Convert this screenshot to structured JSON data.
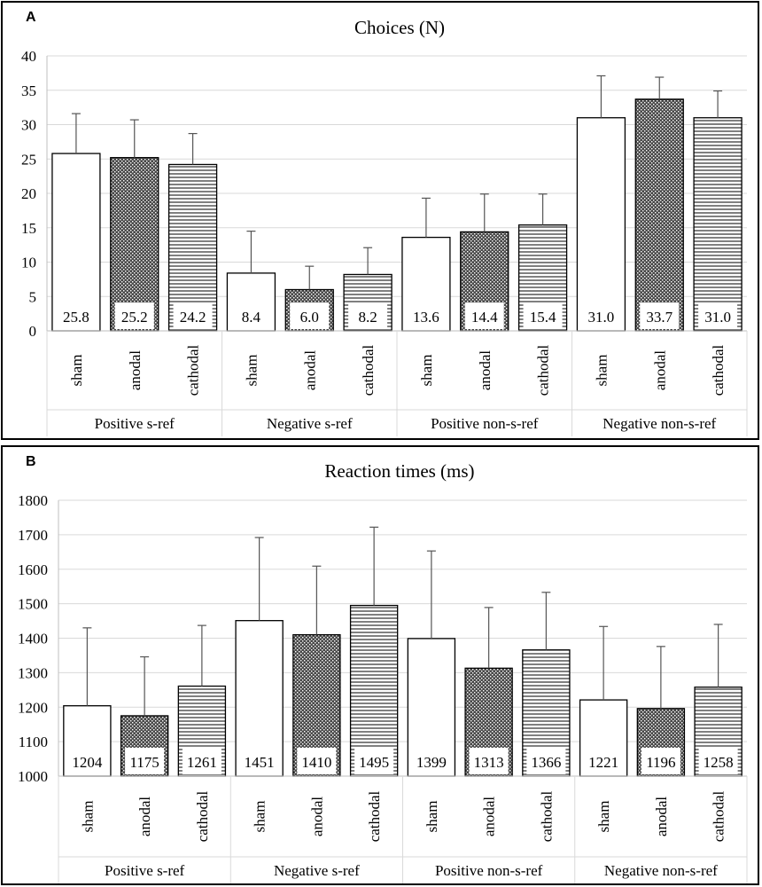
{
  "chart_data": [
    {
      "panel": "A",
      "type": "bar",
      "title": "Choices (N)",
      "ylim": [
        0,
        40
      ],
      "yticks": [
        0,
        5,
        10,
        15,
        20,
        25,
        30,
        35,
        40
      ],
      "conditions": [
        "sham",
        "anodal",
        "cathodal"
      ],
      "groups": [
        "Positive s-ref",
        "Negative s-ref",
        "Positive non-s-ref",
        "Negative non-s-ref"
      ],
      "series": [
        {
          "name": "sham",
          "pattern": "plain",
          "values": [
            25.8,
            8.4,
            13.6,
            31.0
          ],
          "labels": [
            "25.8",
            "8.4",
            "13.6",
            "31.0"
          ],
          "err_upper": [
            31.6,
            14.5,
            19.3,
            37.1
          ]
        },
        {
          "name": "anodal",
          "pattern": "dotted",
          "values": [
            25.2,
            6.0,
            14.4,
            33.7
          ],
          "labels": [
            "25.2",
            "6.0",
            "14.4",
            "33.7"
          ],
          "err_upper": [
            30.7,
            9.4,
            19.9,
            36.9
          ]
        },
        {
          "name": "cathodal",
          "pattern": "horizontal-lines",
          "values": [
            24.2,
            8.2,
            15.4,
            31.0
          ],
          "labels": [
            "24.2",
            "8.2",
            "15.4",
            "31.0"
          ],
          "err_upper": [
            28.7,
            12.1,
            19.9,
            34.9
          ]
        }
      ]
    },
    {
      "panel": "B",
      "type": "bar",
      "title": "Reaction times (ms)",
      "ylim": [
        1000,
        1800
      ],
      "yticks": [
        1000,
        1100,
        1200,
        1300,
        1400,
        1500,
        1600,
        1700,
        1800
      ],
      "conditions": [
        "sham",
        "anodal",
        "cathodal"
      ],
      "groups": [
        "Positive s-ref",
        "Negative s-ref",
        "Positive non-s-ref",
        "Negative non-s-ref"
      ],
      "series": [
        {
          "name": "sham",
          "pattern": "plain",
          "values": [
            1204,
            1451,
            1399,
            1221
          ],
          "labels": [
            "1204",
            "1451",
            "1399",
            "1221"
          ],
          "err_upper": [
            1430,
            1692,
            1653,
            1434
          ]
        },
        {
          "name": "anodal",
          "pattern": "dotted",
          "values": [
            1175,
            1410,
            1313,
            1196
          ],
          "labels": [
            "1175",
            "1410",
            "1313",
            "1196"
          ],
          "err_upper": [
            1346,
            1609,
            1489,
            1376
          ]
        },
        {
          "name": "cathodal",
          "pattern": "horizontal-lines",
          "values": [
            1261,
            1495,
            1366,
            1258
          ],
          "labels": [
            "1261",
            "1495",
            "1366",
            "1258"
          ],
          "err_upper": [
            1437,
            1722,
            1533,
            1440
          ]
        }
      ]
    }
  ]
}
